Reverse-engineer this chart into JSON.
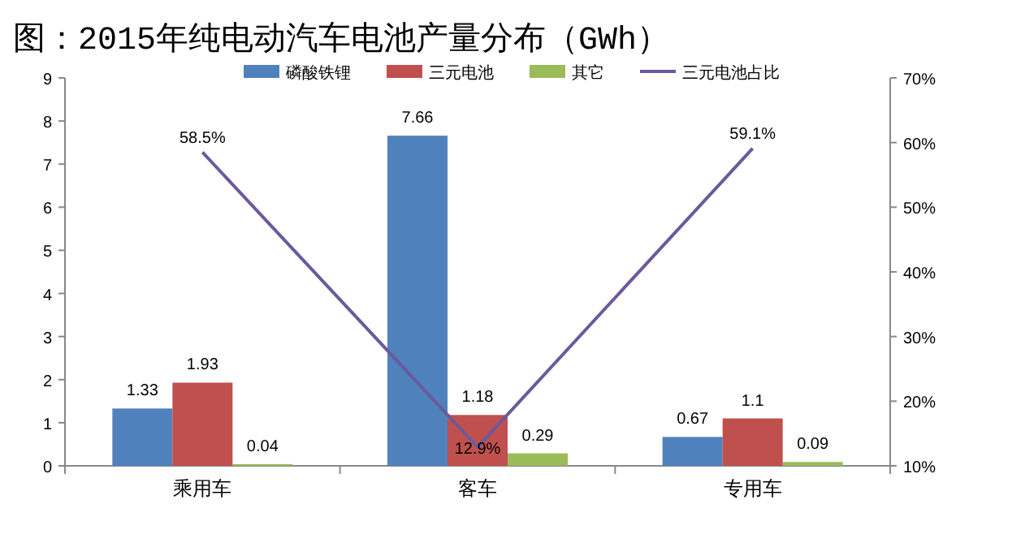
{
  "chart_data": {
    "type": "bar",
    "title": "图：2015年纯电动汽车电池产量分布（GWh）",
    "categories": [
      "乘用车",
      "客车",
      "专用车"
    ],
    "series": [
      {
        "name": "磷酸铁锂",
        "color": "#4f81bd",
        "values": [
          1.33,
          7.66,
          0.67
        ],
        "value_labels": [
          "1.33",
          "7.66",
          "0.67"
        ]
      },
      {
        "name": "三元电池",
        "color": "#c0504d",
        "values": [
          1.93,
          1.18,
          1.1
        ],
        "value_labels": [
          "1.93",
          "1.18",
          "1.1"
        ]
      },
      {
        "name": "其它",
        "color": "#9bbb59",
        "values": [
          0.04,
          0.29,
          0.09
        ],
        "value_labels": [
          "0.04",
          "0.29",
          "0.09"
        ]
      },
      {
        "name": "三元电池占比",
        "type": "line",
        "axis": "y2",
        "color": "#6a5a9c",
        "values": [
          58.5,
          12.9,
          59.1
        ],
        "value_labels": [
          "58.5%",
          "12.9%",
          "59.1%"
        ]
      }
    ],
    "ylim": [
      0,
      9
    ],
    "yticks": [
      0,
      1,
      2,
      3,
      4,
      5,
      6,
      7,
      8,
      9
    ],
    "y2lim": [
      10,
      70
    ],
    "y2ticks": [
      {
        "value": 10,
        "label": "10%"
      },
      {
        "value": 20,
        "label": "20%"
      },
      {
        "value": 30,
        "label": "30%"
      },
      {
        "value": 40,
        "label": "40%"
      },
      {
        "value": 50,
        "label": "50%"
      },
      {
        "value": 60,
        "label": "60%"
      },
      {
        "value": 70,
        "label": "70%"
      }
    ],
    "legend": "top",
    "grid": false
  }
}
